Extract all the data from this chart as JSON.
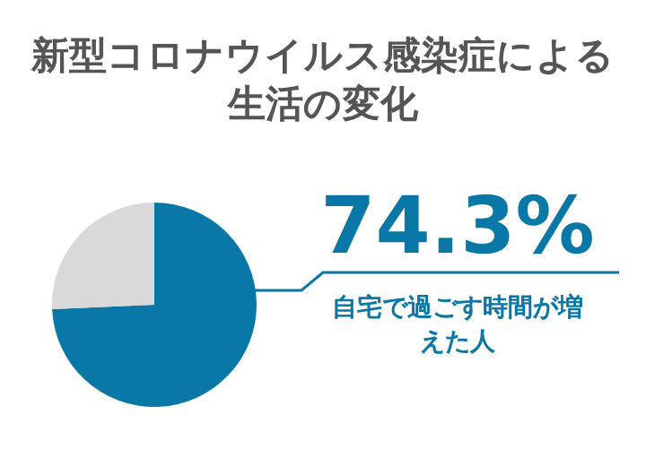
{
  "chart_data": {
    "type": "pie",
    "title": "新型コロナウイルス感染症による生活の変化",
    "categories": [
      "自宅で過ごす時間が増えた人",
      null
    ],
    "values": [
      74.3,
      25.7
    ],
    "colors": [
      "#0a78a6",
      "#d9d9d9"
    ],
    "value_labels": [
      "74.3%",
      null
    ]
  }
}
